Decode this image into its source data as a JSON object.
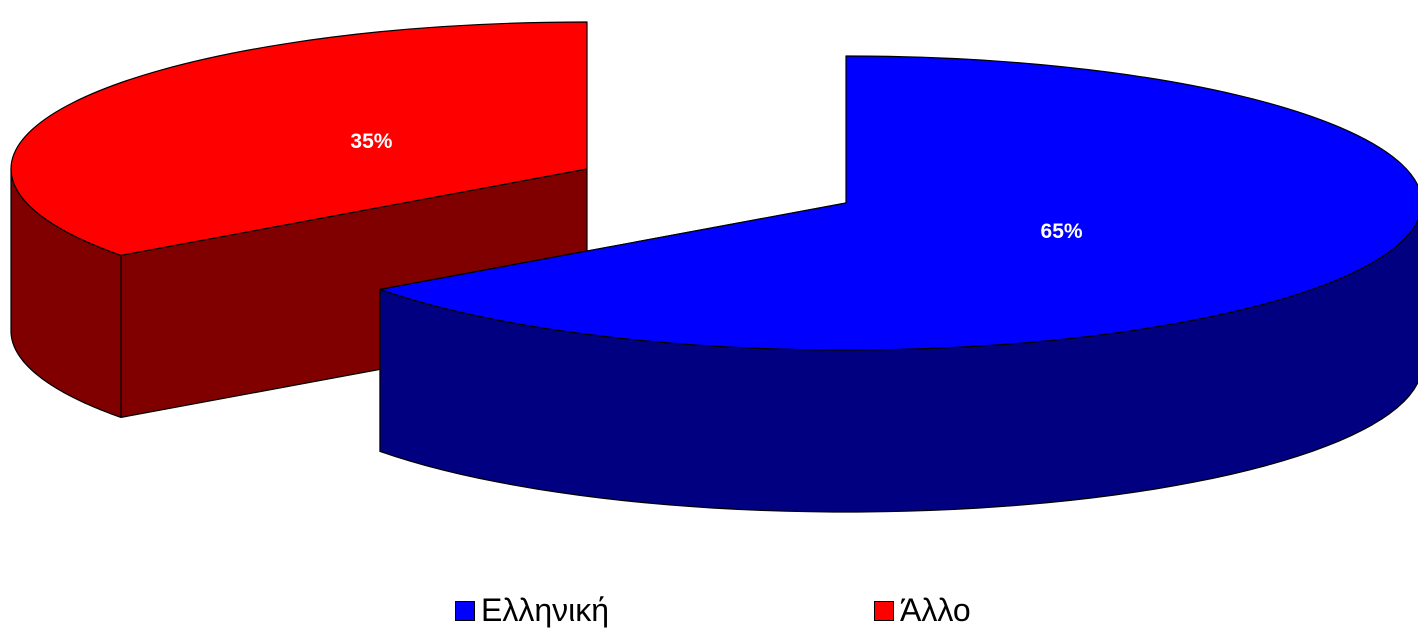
{
  "chart_data": {
    "type": "pie",
    "style": "3d-exploded",
    "title": "",
    "categories": [
      "Ελληνική",
      "Άλλο"
    ],
    "values": [
      65,
      35
    ],
    "data_labels": [
      "65%",
      "35%"
    ],
    "legend_position": "bottom",
    "colors": {
      "top": [
        "#0000FF",
        "#FF0000"
      ],
      "side": [
        "#000080",
        "#800000"
      ],
      "outline": "#000000"
    }
  }
}
